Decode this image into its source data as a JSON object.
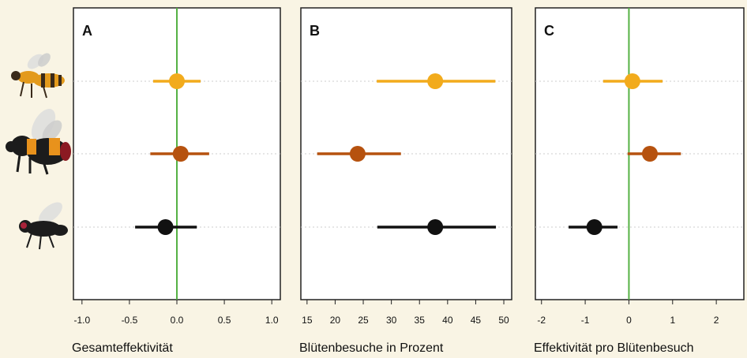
{
  "chart_data": [
    {
      "type": "dot",
      "label": "A",
      "xlabel": "Gesamteffektivität",
      "xlim": [
        -1.09,
        1.09
      ],
      "xticks": [
        {
          "value": -1.0,
          "label": "-1.0"
        },
        -0.5,
        {
          "value": 0.0,
          "label": "0.0"
        },
        0.5,
        {
          "value": 1.0,
          "label": "1.0"
        }
      ],
      "refline": 0,
      "refline_color": "#55b144",
      "colors": [
        "#f2ab1c",
        "#b6520f",
        "#111111"
      ],
      "values": [
        0.0,
        0.04,
        -0.12
      ],
      "lower": [
        -0.25,
        -0.28,
        -0.44
      ],
      "upper": [
        0.25,
        0.34,
        0.21
      ]
    },
    {
      "type": "dot",
      "label": "B",
      "xlabel": "Blütenbesuche in Prozent",
      "xlim": [
        13.9,
        51.4
      ],
      "xticks": [
        15,
        20,
        25,
        30,
        35,
        40,
        45,
        50
      ],
      "colors": [
        "#f2ab1c",
        "#b6520f",
        "#111111"
      ],
      "values": [
        37.8,
        24.0,
        37.8
      ],
      "lower": [
        27.4,
        16.8,
        27.5
      ],
      "upper": [
        48.5,
        31.7,
        48.6
      ]
    },
    {
      "type": "dot",
      "label": "C",
      "xlabel": "Effektivität pro Blütenbesuch",
      "xlim": [
        -2.14,
        2.63
      ],
      "xticks": [
        -2,
        -1,
        0,
        1,
        2
      ],
      "refline": 0,
      "refline_color": "#55b144",
      "colors": [
        "#f2ab1c",
        "#b6520f",
        "#111111"
      ],
      "values": [
        0.08,
        0.48,
        -0.79
      ],
      "lower": [
        -0.59,
        -0.03,
        -1.38
      ],
      "upper": [
        0.77,
        1.19,
        -0.26
      ]
    }
  ]
}
